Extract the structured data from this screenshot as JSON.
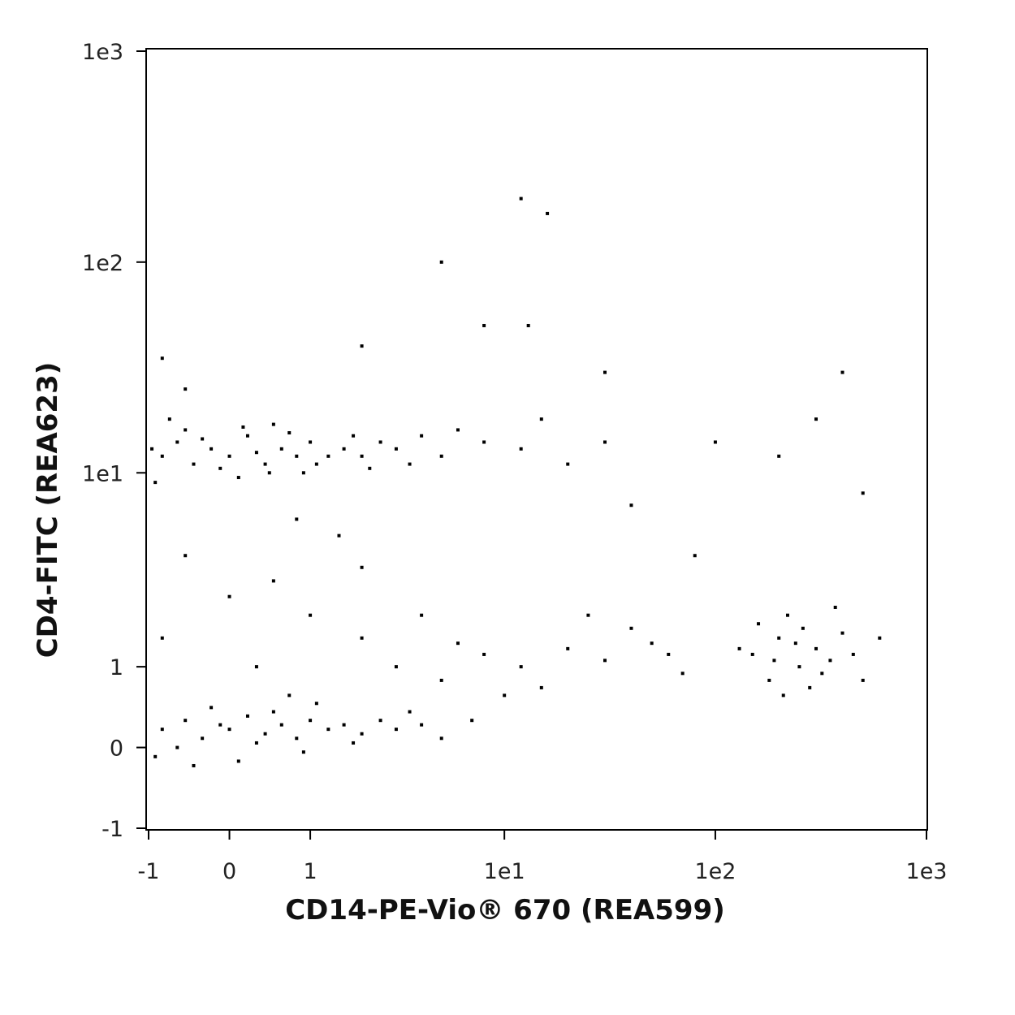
{
  "chart_data": {
    "type": "scatter",
    "x_label": "CD14-PE-Vio® 670 (REA599)",
    "y_label": "CD4-FITC (REA623)",
    "xscale": "asinh",
    "yscale": "asinh",
    "xlim": [
      -1,
      1000
    ],
    "ylim": [
      -1,
      1000
    ],
    "xticks": [
      -1,
      0,
      1,
      {
        "value": 10,
        "label": "1e1"
      },
      {
        "value": 100,
        "label": "1e2"
      },
      {
        "value": 1000,
        "label": "1e3"
      }
    ],
    "yticks": [
      -1,
      0,
      1,
      {
        "value": 10,
        "label": "1e1"
      },
      {
        "value": 100,
        "label": "1e2"
      },
      {
        "value": 1000,
        "label": "1e3"
      }
    ],
    "color": "#000000",
    "x": [
      -0.8,
      -0.6,
      -0.4,
      -0.2,
      0,
      0.2,
      0.4,
      0.6,
      0.8,
      1,
      1.3,
      -0.9,
      -0.5,
      0.1,
      0.5,
      0.9,
      1.6,
      2,
      2.5,
      -0.7,
      0.3,
      -0.1,
      0.7,
      1.1,
      -0.3,
      3,
      4,
      5,
      3.5,
      6,
      8,
      12,
      15,
      20,
      30,
      -0.95,
      0.15,
      0.45,
      1.8,
      2.2,
      -0.8,
      -0.5,
      -0.3,
      0,
      0.2,
      0.4,
      0.6,
      0.8,
      1,
      1.3,
      1.6,
      2,
      2.5,
      3,
      -0.9,
      -0.6,
      0.1,
      0.5,
      0.9,
      -0.2,
      0.3,
      1.1,
      4,
      5,
      7,
      -0.4,
      0.7,
      1.8,
      3.5,
      -0.1,
      0.5,
      1,
      2,
      3,
      5,
      8,
      12,
      20,
      30,
      50,
      70,
      -0.5,
      0,
      1.5,
      -0.8,
      0.3,
      4,
      10,
      40,
      60,
      2,
      6,
      15,
      25,
      0.8,
      150,
      200,
      250,
      300,
      180,
      220,
      280,
      350,
      400,
      160,
      240,
      320,
      190,
      260,
      210,
      450,
      500,
      130,
      600,
      370,
      12,
      16,
      5,
      8,
      13,
      30,
      400,
      300,
      100,
      200,
      500,
      40,
      80,
      -0.8,
      -0.5,
      2
    ],
    "y": [
      12,
      14,
      11,
      13,
      12,
      15,
      11,
      13,
      12,
      14,
      12,
      9,
      16,
      9.5,
      17,
      10,
      13,
      12,
      14,
      18,
      12.5,
      10.5,
      15.5,
      11,
      14.5,
      13,
      15,
      12,
      11,
      16,
      14,
      13,
      18,
      11,
      14,
      13,
      16.5,
      10,
      15,
      10.5,
      0.2,
      0.3,
      0.1,
      0.2,
      0.35,
      0.15,
      0.25,
      0.1,
      0.3,
      0.2,
      0.25,
      0.15,
      0.3,
      0.2,
      -0.1,
      0,
      -0.15,
      0.4,
      -0.05,
      0.45,
      0.05,
      0.5,
      0.25,
      0.1,
      0.3,
      -0.2,
      0.6,
      0.05,
      0.4,
      0.25,
      3,
      2,
      1.5,
      1,
      0.8,
      1.2,
      1,
      1.3,
      1.1,
      1.4,
      0.9,
      4,
      2.5,
      5,
      1.5,
      1,
      2,
      0.6,
      1.7,
      1.2,
      3.5,
      1.4,
      0.7,
      2,
      6,
      1.2,
      1.5,
      1,
      1.3,
      0.8,
      2,
      0.7,
      1.1,
      1.6,
      1.8,
      1.4,
      0.9,
      1.1,
      1.7,
      0.6,
      1.2,
      0.8,
      1.3,
      1.5,
      2.2,
      200,
      170,
      100,
      50,
      50,
      30,
      30,
      18,
      14,
      12,
      8,
      7,
      4,
      35,
      25,
      40
    ]
  }
}
